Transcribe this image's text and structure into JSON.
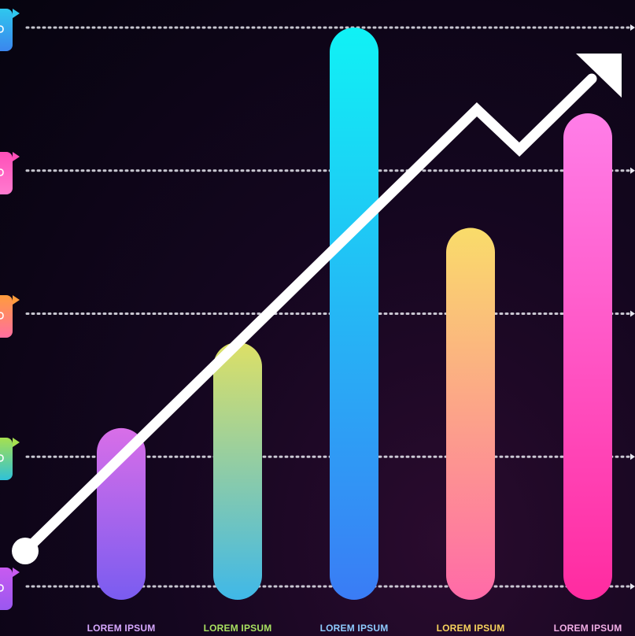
{
  "chart_data": {
    "type": "bar",
    "categories": [
      "LOREM IPSUM",
      "LOREM IPSUM",
      "LOREM IPSUM",
      "LOREM IPSUM",
      "LOREM IPSUM"
    ],
    "values": [
      1.2,
      1.8,
      4.0,
      2.6,
      3.4
    ],
    "ylim": [
      0,
      4
    ],
    "grid": true,
    "trend_arrow": true,
    "bar_gradients": [
      [
        "#d86ee8",
        "#7a5cf0"
      ],
      [
        "#dde066",
        "#3fb8e8"
      ],
      [
        "#10f2f5",
        "#3a7cf5"
      ],
      [
        "#f9dc6a",
        "#ff6aa8"
      ],
      [
        "#ff7ee8",
        "#ff2ba0"
      ]
    ],
    "label_colors": [
      "#d7a8ff",
      "#a8e060",
      "#8ecbff",
      "#f7d25c",
      "#f2aee6"
    ]
  },
  "sidebar_icons": [
    {
      "name": "cloud-icon",
      "color_top": "#2fc7ee",
      "color_bottom": "#3b86ee"
    },
    {
      "name": "chat-icon",
      "color_top": "#ff4fb8",
      "color_bottom": "#ff7bd0"
    },
    {
      "name": "document-icon",
      "color_top": "#ff9c3c",
      "color_bottom": "#ff6fa0"
    },
    {
      "name": "recycle-icon",
      "color_top": "#a6e04f",
      "color_bottom": "#2fc2d8"
    },
    {
      "name": "settings-icon",
      "color_top": "#c85af0",
      "color_bottom": "#9a58f0"
    }
  ]
}
